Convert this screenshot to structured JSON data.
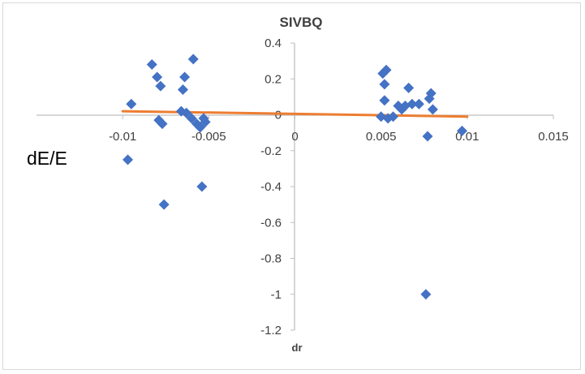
{
  "chart_data": {
    "type": "scatter",
    "title": "SIVBQ",
    "xlabel": "dr",
    "ylabel": "",
    "xlim": [
      -0.015,
      0.015
    ],
    "ylim": [
      -1.2,
      0.4
    ],
    "x_ticks": [
      "-0.01",
      "-0.005",
      "0",
      "0.005",
      "0.01",
      "0.015"
    ],
    "x_tick_values": [
      -0.01,
      -0.005,
      0,
      0.005,
      0.01,
      0.015
    ],
    "y_ticks": [
      "0.4",
      "0.2",
      "0",
      "-0.2",
      "-0.4",
      "-0.6",
      "-0.8",
      "-1",
      "-1.2"
    ],
    "y_tick_values": [
      0.4,
      0.2,
      0,
      -0.2,
      -0.4,
      -0.6,
      -0.8,
      -1,
      -1.2
    ],
    "grid": false,
    "series": [
      {
        "marker": "diamond",
        "color": "#4472c4",
        "points": [
          [
            -0.0095,
            0.06
          ],
          [
            -0.0083,
            0.28
          ],
          [
            -0.008,
            0.21
          ],
          [
            -0.0078,
            0.16
          ],
          [
            -0.0079,
            -0.03
          ],
          [
            -0.0077,
            -0.05
          ],
          [
            -0.0076,
            -0.5
          ],
          [
            -0.0097,
            -0.25
          ],
          [
            -0.0066,
            0.02
          ],
          [
            -0.0065,
            0.14
          ],
          [
            -0.0064,
            0.21
          ],
          [
            -0.0063,
            0.01
          ],
          [
            -0.006,
            -0.02
          ],
          [
            -0.0059,
            0.31
          ],
          [
            -0.0057,
            -0.05
          ],
          [
            -0.0055,
            -0.07
          ],
          [
            -0.0053,
            -0.02
          ],
          [
            -0.0052,
            -0.04
          ],
          [
            -0.0054,
            -0.4
          ],
          [
            0.0051,
            0.23
          ],
          [
            0.0053,
            0.25
          ],
          [
            0.0052,
            0.17
          ],
          [
            0.0052,
            0.08
          ],
          [
            0.005,
            -0.01
          ],
          [
            0.0054,
            -0.02
          ],
          [
            0.0057,
            -0.01
          ],
          [
            0.006,
            0.05
          ],
          [
            0.0062,
            0.03
          ],
          [
            0.0064,
            0.05
          ],
          [
            0.0066,
            0.15
          ],
          [
            0.0068,
            0.06
          ],
          [
            0.0072,
            0.06
          ],
          [
            0.0078,
            0.09
          ],
          [
            0.0079,
            0.12
          ],
          [
            0.008,
            0.03
          ],
          [
            0.0077,
            -0.12
          ],
          [
            0.0097,
            -0.09
          ],
          [
            0.0076,
            -1.0
          ]
        ]
      }
    ],
    "trendline": {
      "color": "#ed7d31",
      "points": [
        [
          -0.01,
          0.02
        ],
        [
          0.01,
          -0.01
        ]
      ]
    }
  },
  "overlay": {
    "label": "dE/E"
  }
}
